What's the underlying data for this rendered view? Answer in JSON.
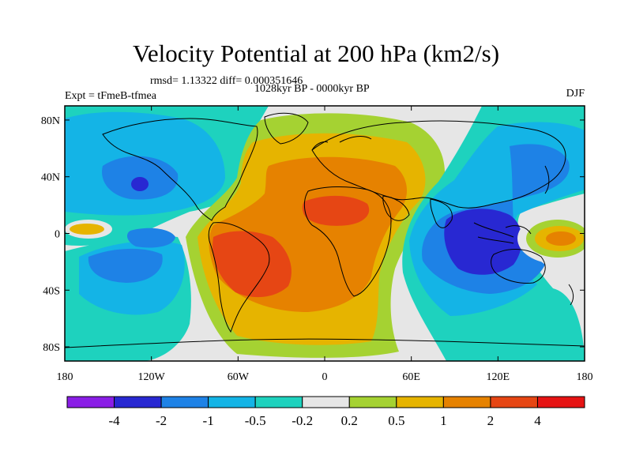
{
  "title": "Velocity Potential at 200 hPa (km2/s)",
  "stats_line": "rmsd= 1.13322 diff= 0.000351646",
  "period_label": "1028kyr BP - 0000kyr BP",
  "experiment_label": "Expt = tFmeB-tfmea",
  "season_label": "DJF",
  "map": {
    "projection": "cylindrical equidistant",
    "lon_ticks": [
      "180",
      "120W",
      "60W",
      "0",
      "60E",
      "120E",
      "180"
    ],
    "lat_ticks": [
      "80N",
      "40N",
      "0",
      "40S",
      "80S"
    ],
    "coastlines": true
  },
  "colorbar": {
    "colors": [
      "#8a1ee6",
      "#2828d2",
      "#1e82e6",
      "#14b4e6",
      "#1ed2be",
      "#e6e6e6",
      "#a5d232",
      "#e6b400",
      "#e68200",
      "#e64614",
      "#e61414"
    ],
    "labels": [
      "-4",
      "-2",
      "-1",
      "-0.5",
      "-0.2",
      "0.2",
      "0.5",
      "1",
      "2",
      "4"
    ]
  }
}
